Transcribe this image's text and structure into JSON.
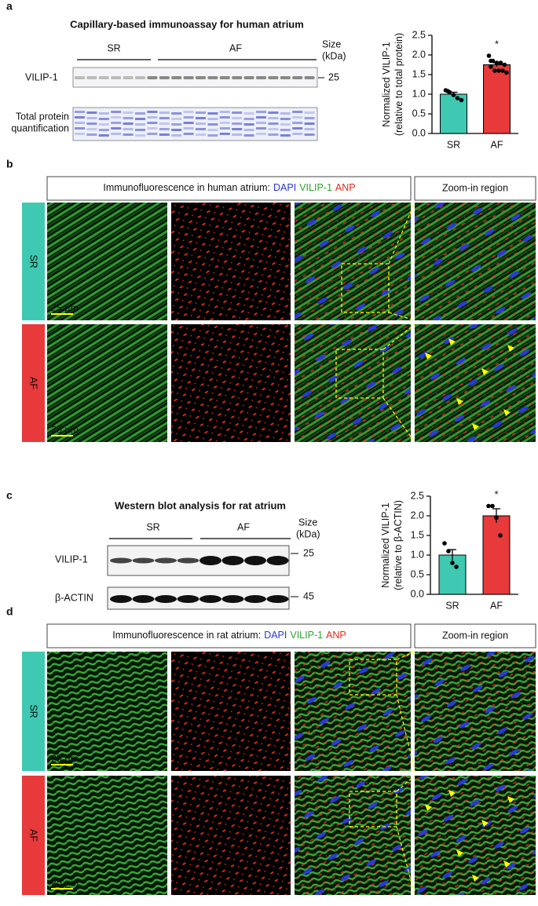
{
  "chart_data": [
    {
      "type": "bar",
      "ylabel": [
        "Normalized VILIP-1",
        "(relative to total protein)"
      ],
      "categories": [
        "SR",
        "AF"
      ],
      "values": [
        1.0,
        1.75
      ],
      "errors": [
        0.05,
        0.05
      ],
      "colors": [
        "#3fc9b2",
        "#e8393b"
      ],
      "points": [
        [
          1.1,
          1.05,
          0.98,
          0.9,
          0.85,
          1.08
        ],
        [
          1.98,
          1.85,
          1.8,
          1.8,
          1.75,
          1.7,
          1.6,
          1.6,
          1.6,
          1.55,
          1.85
        ]
      ],
      "annotation": "*",
      "ylim": [
        0,
        2.5
      ],
      "yticks": [
        {
          "value": 0,
          "label": "0.0"
        },
        {
          "value": 0.5,
          "label": "0.5"
        },
        {
          "value": 1,
          "label": "1.0"
        },
        {
          "value": 1.5,
          "label": "1.5"
        },
        {
          "value": 2,
          "label": "2.0"
        },
        {
          "value": 2.5,
          "label": "2.5"
        }
      ]
    },
    {
      "type": "bar",
      "ylabel": [
        "Normalized VILIP-1",
        "(relative to β-ACTIN)"
      ],
      "categories": [
        "SR",
        "AF"
      ],
      "values": [
        1.0,
        2.0
      ],
      "errors": [
        0.14,
        0.18
      ],
      "colors": [
        "#3fc9b2",
        "#e8393b"
      ],
      "points": [
        [
          1.3,
          1.1,
          0.8,
          0.7
        ],
        [
          2.25,
          2.25,
          1.95,
          1.5
        ]
      ],
      "annotation": "*",
      "ylim": [
        0,
        2.5
      ],
      "yticks": [
        {
          "value": 0,
          "label": "0.0"
        },
        {
          "value": 0.5,
          "label": "0.5"
        },
        {
          "value": 1,
          "label": "1.0"
        },
        {
          "value": 1.5,
          "label": "1.5"
        },
        {
          "value": 2,
          "label": "2.0"
        },
        {
          "value": 2.5,
          "label": "2.5"
        }
      ]
    }
  ],
  "panel_a": {
    "label": "a",
    "title": "Capillary-based immunoassay for human atrium",
    "groups": [
      "SR",
      "AF"
    ],
    "size_header": [
      "Size",
      "(kDa)"
    ],
    "rows": [
      "VILIP-1",
      [
        "Total protein",
        "quantification"
      ]
    ],
    "markers": [
      "25"
    ]
  },
  "panel_b": {
    "label": "b",
    "header": [
      "Immunofluorescence in human atrium:",
      "DAPI",
      "VILIP-1",
      "ANP"
    ],
    "zoom": "Zoom-in region",
    "rows": [
      "SR",
      "AF"
    ],
    "scale_bar": "25 µm"
  },
  "panel_c": {
    "label": "c",
    "title": "Western blot analysis for rat atrium",
    "groups": [
      "SR",
      "AF"
    ],
    "size_header": [
      "Size",
      "(kDa)"
    ],
    "rows": [
      "VILIP-1",
      "β-ACTIN"
    ],
    "markers": [
      "25",
      "45"
    ]
  },
  "panel_d": {
    "label": "d",
    "header": [
      "Immunofluorescence in rat atrium:",
      "DAPI",
      "VILIP-1",
      "ANP"
    ],
    "zoom": "Zoom-in region",
    "rows": [
      "SR",
      "AF"
    ],
    "scale_bar": "25 µm"
  }
}
